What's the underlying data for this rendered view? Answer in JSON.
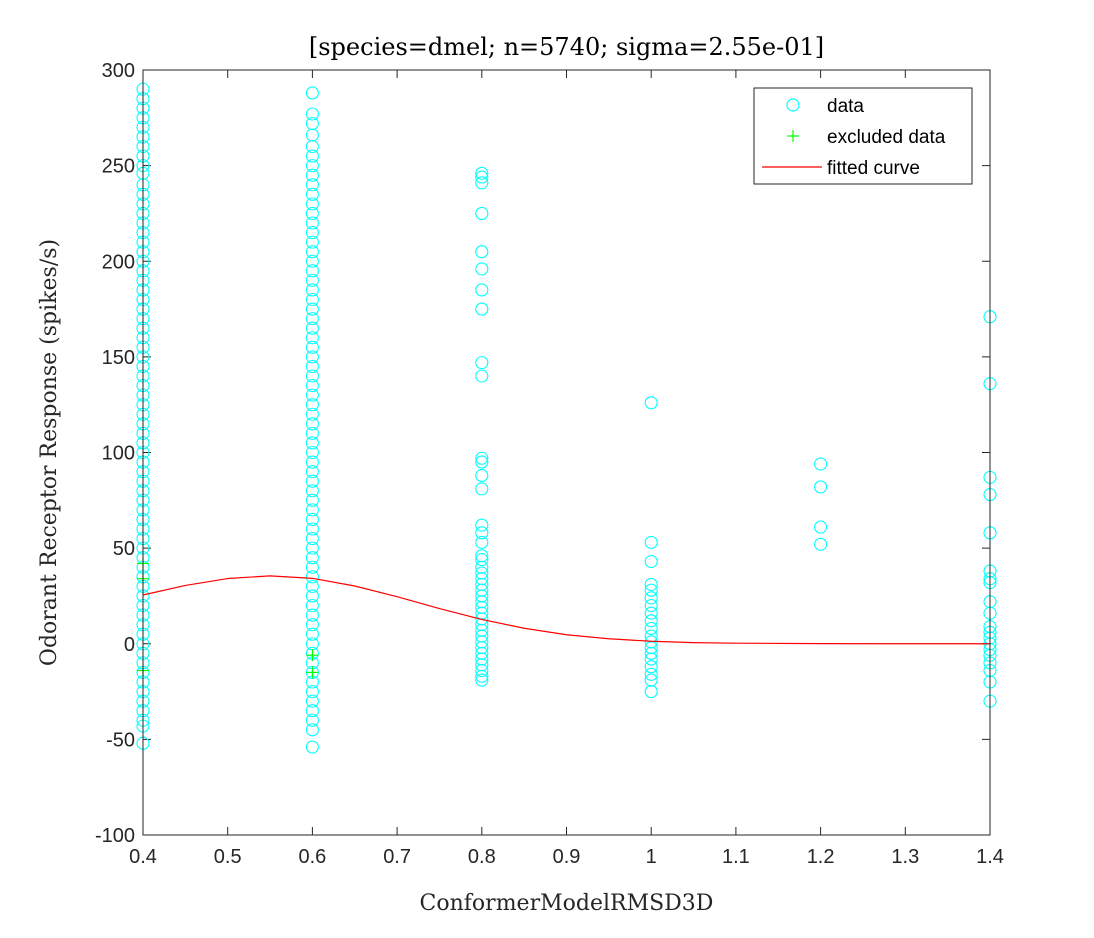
{
  "chart_data": {
    "type": "scatter",
    "title": "[species=dmel; n=5740; sigma=2.55e-01]",
    "xlabel": "ConformerModelRMSD3D",
    "ylabel": "Odorant Receptor Response (spikes/s)",
    "xlim": [
      0.4,
      1.4
    ],
    "ylim": [
      -100,
      300
    ],
    "xticks": [
      "0.4",
      "0.5",
      "0.6",
      "0.7",
      "0.8",
      "0.9",
      "1",
      "1.1",
      "1.2",
      "1.3",
      "1.4"
    ],
    "yticks": [
      "-100",
      "-50",
      "0",
      "50",
      "100",
      "150",
      "200",
      "250",
      "300"
    ],
    "grid": false,
    "legend_position": "top-right",
    "legend": [
      {
        "label": "data",
        "marker": "circle",
        "color": "#00ffff"
      },
      {
        "label": "excluded data",
        "marker": "plus",
        "color": "#00ff00"
      },
      {
        "label": "fitted curve",
        "marker": "line",
        "color": "#ff0000"
      }
    ],
    "series": [
      {
        "name": "data",
        "color": "#00ffff",
        "points": [
          [
            0.4,
            290
          ],
          [
            0.4,
            285
          ],
          [
            0.4,
            280
          ],
          [
            0.4,
            275
          ],
          [
            0.4,
            270
          ],
          [
            0.4,
            265
          ],
          [
            0.4,
            260
          ],
          [
            0.4,
            255
          ],
          [
            0.4,
            250
          ],
          [
            0.4,
            246
          ],
          [
            0.4,
            240
          ],
          [
            0.4,
            235
          ],
          [
            0.4,
            230
          ],
          [
            0.4,
            225
          ],
          [
            0.4,
            220
          ],
          [
            0.4,
            215
          ],
          [
            0.4,
            210
          ],
          [
            0.4,
            205
          ],
          [
            0.4,
            200
          ],
          [
            0.4,
            195
          ],
          [
            0.4,
            190
          ],
          [
            0.4,
            185
          ],
          [
            0.4,
            180
          ],
          [
            0.4,
            175
          ],
          [
            0.4,
            170
          ],
          [
            0.4,
            165
          ],
          [
            0.4,
            160
          ],
          [
            0.4,
            155
          ],
          [
            0.4,
            150
          ],
          [
            0.4,
            145
          ],
          [
            0.4,
            140
          ],
          [
            0.4,
            135
          ],
          [
            0.4,
            130
          ],
          [
            0.4,
            125
          ],
          [
            0.4,
            120
          ],
          [
            0.4,
            115
          ],
          [
            0.4,
            110
          ],
          [
            0.4,
            105
          ],
          [
            0.4,
            100
          ],
          [
            0.4,
            95
          ],
          [
            0.4,
            90
          ],
          [
            0.4,
            85
          ],
          [
            0.4,
            80
          ],
          [
            0.4,
            75
          ],
          [
            0.4,
            70
          ],
          [
            0.4,
            65
          ],
          [
            0.4,
            60
          ],
          [
            0.4,
            55
          ],
          [
            0.4,
            50
          ],
          [
            0.4,
            45
          ],
          [
            0.4,
            40
          ],
          [
            0.4,
            35
          ],
          [
            0.4,
            30
          ],
          [
            0.4,
            25
          ],
          [
            0.4,
            20
          ],
          [
            0.4,
            15
          ],
          [
            0.4,
            10
          ],
          [
            0.4,
            5
          ],
          [
            0.4,
            0
          ],
          [
            0.4,
            -5
          ],
          [
            0.4,
            -10
          ],
          [
            0.4,
            -15
          ],
          [
            0.4,
            -20
          ],
          [
            0.4,
            -25
          ],
          [
            0.4,
            -30
          ],
          [
            0.4,
            -35
          ],
          [
            0.4,
            -40
          ],
          [
            0.4,
            -43
          ],
          [
            0.4,
            -52
          ],
          [
            0.6,
            288
          ],
          [
            0.6,
            277
          ],
          [
            0.6,
            272
          ],
          [
            0.6,
            266
          ],
          [
            0.6,
            260
          ],
          [
            0.6,
            255
          ],
          [
            0.6,
            250
          ],
          [
            0.6,
            245
          ],
          [
            0.6,
            240
          ],
          [
            0.6,
            235
          ],
          [
            0.6,
            230
          ],
          [
            0.6,
            225
          ],
          [
            0.6,
            220
          ],
          [
            0.6,
            215
          ],
          [
            0.6,
            210
          ],
          [
            0.6,
            205
          ],
          [
            0.6,
            200
          ],
          [
            0.6,
            195
          ],
          [
            0.6,
            190
          ],
          [
            0.6,
            185
          ],
          [
            0.6,
            180
          ],
          [
            0.6,
            175
          ],
          [
            0.6,
            170
          ],
          [
            0.6,
            165
          ],
          [
            0.6,
            160
          ],
          [
            0.6,
            155
          ],
          [
            0.6,
            150
          ],
          [
            0.6,
            145
          ],
          [
            0.6,
            140
          ],
          [
            0.6,
            135
          ],
          [
            0.6,
            130
          ],
          [
            0.6,
            125
          ],
          [
            0.6,
            120
          ],
          [
            0.6,
            115
          ],
          [
            0.6,
            110
          ],
          [
            0.6,
            105
          ],
          [
            0.6,
            100
          ],
          [
            0.6,
            95
          ],
          [
            0.6,
            90
          ],
          [
            0.6,
            85
          ],
          [
            0.6,
            80
          ],
          [
            0.6,
            75
          ],
          [
            0.6,
            70
          ],
          [
            0.6,
            65
          ],
          [
            0.6,
            60
          ],
          [
            0.6,
            55
          ],
          [
            0.6,
            50
          ],
          [
            0.6,
            45
          ],
          [
            0.6,
            40
          ],
          [
            0.6,
            35
          ],
          [
            0.6,
            30
          ],
          [
            0.6,
            25
          ],
          [
            0.6,
            20
          ],
          [
            0.6,
            15
          ],
          [
            0.6,
            10
          ],
          [
            0.6,
            5
          ],
          [
            0.6,
            0
          ],
          [
            0.6,
            -5
          ],
          [
            0.6,
            -10
          ],
          [
            0.6,
            -15
          ],
          [
            0.6,
            -20
          ],
          [
            0.6,
            -25
          ],
          [
            0.6,
            -30
          ],
          [
            0.6,
            -35
          ],
          [
            0.6,
            -40
          ],
          [
            0.6,
            -45
          ],
          [
            0.6,
            -54
          ],
          [
            0.8,
            246
          ],
          [
            0.8,
            244
          ],
          [
            0.8,
            241
          ],
          [
            0.8,
            225
          ],
          [
            0.8,
            205
          ],
          [
            0.8,
            196
          ],
          [
            0.8,
            185
          ],
          [
            0.8,
            175
          ],
          [
            0.8,
            147
          ],
          [
            0.8,
            140
          ],
          [
            0.8,
            97
          ],
          [
            0.8,
            95
          ],
          [
            0.8,
            88
          ],
          [
            0.8,
            81
          ],
          [
            0.8,
            62
          ],
          [
            0.8,
            58
          ],
          [
            0.8,
            53
          ],
          [
            0.8,
            46
          ],
          [
            0.8,
            44
          ],
          [
            0.8,
            40
          ],
          [
            0.8,
            37
          ],
          [
            0.8,
            34
          ],
          [
            0.8,
            31
          ],
          [
            0.8,
            28
          ],
          [
            0.8,
            25
          ],
          [
            0.8,
            22
          ],
          [
            0.8,
            19
          ],
          [
            0.8,
            16
          ],
          [
            0.8,
            13
          ],
          [
            0.8,
            10
          ],
          [
            0.8,
            7
          ],
          [
            0.8,
            4
          ],
          [
            0.8,
            1
          ],
          [
            0.8,
            -2
          ],
          [
            0.8,
            -5
          ],
          [
            0.8,
            -8
          ],
          [
            0.8,
            -11
          ],
          [
            0.8,
            -14
          ],
          [
            0.8,
            -17
          ],
          [
            0.8,
            -19
          ],
          [
            1.0,
            126
          ],
          [
            1.0,
            53
          ],
          [
            1.0,
            43
          ],
          [
            1.0,
            31
          ],
          [
            1.0,
            28
          ],
          [
            1.0,
            24
          ],
          [
            1.0,
            20
          ],
          [
            1.0,
            16
          ],
          [
            1.0,
            12
          ],
          [
            1.0,
            8
          ],
          [
            1.0,
            4
          ],
          [
            1.0,
            1
          ],
          [
            1.0,
            -2
          ],
          [
            1.0,
            -5
          ],
          [
            1.0,
            -8
          ],
          [
            1.0,
            -12
          ],
          [
            1.0,
            -16
          ],
          [
            1.0,
            -19
          ],
          [
            1.0,
            -25
          ],
          [
            1.2,
            94
          ],
          [
            1.2,
            82
          ],
          [
            1.2,
            61
          ],
          [
            1.2,
            52
          ],
          [
            1.4,
            171
          ],
          [
            1.4,
            136
          ],
          [
            1.4,
            87
          ],
          [
            1.4,
            78
          ],
          [
            1.4,
            58
          ],
          [
            1.4,
            38
          ],
          [
            1.4,
            34
          ],
          [
            1.4,
            32
          ],
          [
            1.4,
            22
          ],
          [
            1.4,
            16
          ],
          [
            1.4,
            9
          ],
          [
            1.4,
            6
          ],
          [
            1.4,
            3
          ],
          [
            1.4,
            0
          ],
          [
            1.4,
            -3
          ],
          [
            1.4,
            -6
          ],
          [
            1.4,
            -10
          ],
          [
            1.4,
            -14
          ],
          [
            1.4,
            -20
          ],
          [
            1.4,
            -30
          ]
        ]
      },
      {
        "name": "excluded data",
        "color": "#00ff00",
        "points": [
          [
            0.4,
            42
          ],
          [
            0.4,
            34
          ],
          [
            0.4,
            -14
          ],
          [
            0.6,
            -6
          ],
          [
            0.6,
            -15
          ]
        ]
      },
      {
        "name": "fitted curve",
        "color": "#ff0000",
        "x": [
          0.4,
          0.45,
          0.5,
          0.55,
          0.6,
          0.65,
          0.7,
          0.75,
          0.8,
          0.85,
          0.9,
          0.95,
          1.0,
          1.05,
          1.1,
          1.2,
          1.3,
          1.4
        ],
        "y": [
          25.5,
          30.5,
          34.1,
          35.5,
          34.2,
          30.2,
          24.6,
          18.4,
          12.7,
          8.1,
          4.7,
          2.6,
          1.3,
          0.6,
          0.3,
          0.05,
          0.0,
          0.0
        ]
      }
    ]
  }
}
